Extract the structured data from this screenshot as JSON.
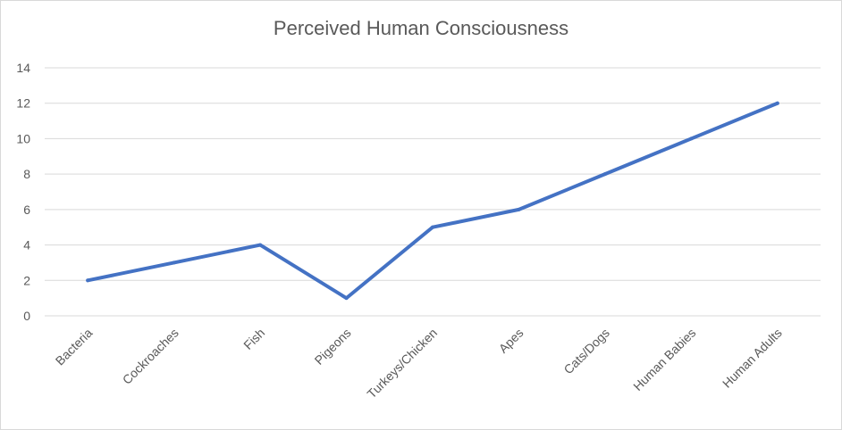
{
  "chart_data": {
    "type": "line",
    "title": "Perceived Human Consciousness",
    "xlabel": "",
    "ylabel": "",
    "categories": [
      "Bacteria",
      "Cockroaches",
      "Fish",
      "Pigeons",
      "Turkeys/Chicken",
      "Apes",
      "Cats/Dogs",
      "Human Babies",
      "Human Adults"
    ],
    "series": [
      {
        "values": [
          2,
          3,
          4,
          1,
          5,
          6,
          8,
          10,
          12
        ],
        "color": "#4472c4"
      }
    ],
    "ylim": [
      0,
      14
    ],
    "yticks": [
      "0",
      "2",
      "4",
      "6",
      "8",
      "10",
      "12",
      "14"
    ],
    "grid": true,
    "legend": "none"
  }
}
